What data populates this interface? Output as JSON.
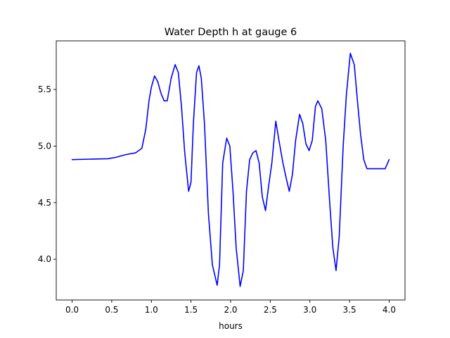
{
  "chart_data": {
    "type": "line",
    "title": "Water Depth h at gauge 6",
    "xlabel": "hours",
    "ylabel": "",
    "xlim": [
      -0.2,
      4.2
    ],
    "ylim": [
      3.64,
      5.93
    ],
    "x_ticks": [
      0.0,
      0.5,
      1.0,
      1.5,
      2.0,
      2.5,
      3.0,
      3.5,
      4.0
    ],
    "x_tick_labels": [
      "0.0",
      "0.5",
      "1.0",
      "1.5",
      "2.0",
      "2.5",
      "3.0",
      "3.5",
      "4.0"
    ],
    "y_ticks": [
      4.0,
      4.5,
      5.0,
      5.5
    ],
    "y_tick_labels": [
      "4.0",
      "4.5",
      "5.0",
      "5.5"
    ],
    "grid": false,
    "series": [
      {
        "color": "#0000ff",
        "x": [
          0.0,
          0.25,
          0.45,
          0.55,
          0.68,
          0.8,
          0.88,
          0.93,
          0.97,
          1.0,
          1.04,
          1.08,
          1.12,
          1.16,
          1.2,
          1.25,
          1.3,
          1.34,
          1.38,
          1.42,
          1.47,
          1.5,
          1.53,
          1.57,
          1.6,
          1.63,
          1.67,
          1.72,
          1.77,
          1.83,
          1.86,
          1.9,
          1.95,
          1.99,
          2.03,
          2.07,
          2.12,
          2.16,
          2.2,
          2.24,
          2.28,
          2.32,
          2.36,
          2.4,
          2.44,
          2.48,
          2.52,
          2.57,
          2.61,
          2.66,
          2.7,
          2.74,
          2.78,
          2.82,
          2.87,
          2.91,
          2.95,
          2.99,
          3.03,
          3.07,
          3.1,
          3.15,
          3.2,
          3.25,
          3.29,
          3.33,
          3.37,
          3.42,
          3.46,
          3.51,
          3.56,
          3.6,
          3.64,
          3.68,
          3.72,
          3.76,
          3.8,
          3.83,
          3.87,
          3.91,
          3.95,
          4.0
        ],
        "y": [
          4.88,
          4.885,
          4.888,
          4.9,
          4.925,
          4.94,
          4.98,
          5.15,
          5.4,
          5.52,
          5.62,
          5.57,
          5.47,
          5.4,
          5.4,
          5.6,
          5.72,
          5.65,
          5.35,
          4.95,
          4.6,
          4.68,
          5.2,
          5.65,
          5.71,
          5.6,
          5.2,
          4.4,
          3.95,
          3.77,
          3.95,
          4.85,
          5.07,
          5.0,
          4.6,
          4.1,
          3.76,
          3.9,
          4.6,
          4.88,
          4.94,
          4.96,
          4.85,
          4.55,
          4.43,
          4.65,
          4.85,
          5.22,
          5.05,
          4.85,
          4.72,
          4.6,
          4.75,
          5.05,
          5.28,
          5.2,
          5.02,
          4.96,
          5.05,
          5.35,
          5.4,
          5.33,
          5.05,
          4.5,
          4.1,
          3.9,
          4.2,
          5.0,
          5.45,
          5.82,
          5.72,
          5.4,
          5.1,
          4.88,
          4.8,
          4.8,
          4.8,
          4.8,
          4.8,
          4.8,
          4.8,
          4.88
        ]
      }
    ]
  }
}
